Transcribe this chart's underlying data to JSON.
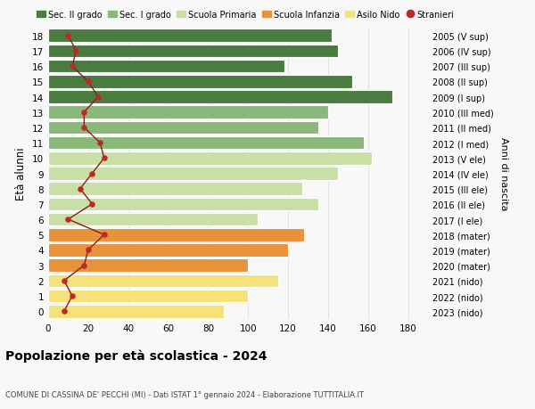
{
  "ages": [
    0,
    1,
    2,
    3,
    4,
    5,
    6,
    7,
    8,
    9,
    10,
    11,
    12,
    13,
    14,
    15,
    16,
    17,
    18
  ],
  "bar_values": [
    88,
    100,
    115,
    100,
    120,
    128,
    105,
    135,
    127,
    145,
    162,
    158,
    135,
    140,
    172,
    152,
    118,
    145,
    142
  ],
  "bar_colors": [
    "#f5e27a",
    "#f5e27a",
    "#f5e27a",
    "#e8923a",
    "#e8923a",
    "#e8923a",
    "#c8dfa8",
    "#c8dfa8",
    "#c8dfa8",
    "#c8dfa8",
    "#c8dfa8",
    "#8ab87a",
    "#8ab87a",
    "#8ab87a",
    "#4a7c3f",
    "#4a7c3f",
    "#4a7c3f",
    "#4a7c3f",
    "#4a7c3f"
  ],
  "stranieri_values": [
    8,
    12,
    8,
    18,
    20,
    28,
    10,
    22,
    16,
    22,
    28,
    26,
    18,
    18,
    25,
    20,
    12,
    14,
    10
  ],
  "right_labels": [
    "2023 (nido)",
    "2022 (nido)",
    "2021 (nido)",
    "2020 (mater)",
    "2019 (mater)",
    "2018 (mater)",
    "2017 (I ele)",
    "2016 (II ele)",
    "2015 (III ele)",
    "2014 (IV ele)",
    "2013 (V ele)",
    "2012 (I med)",
    "2011 (II med)",
    "2010 (III med)",
    "2009 (I sup)",
    "2008 (II sup)",
    "2007 (III sup)",
    "2006 (IV sup)",
    "2005 (V sup)"
  ],
  "legend_labels": [
    "Sec. II grado",
    "Sec. I grado",
    "Scuola Primaria",
    "Scuola Infanzia",
    "Asilo Nido",
    "Stranieri"
  ],
  "legend_colors": [
    "#4a7c3f",
    "#8ab87a",
    "#c8dfa8",
    "#e8923a",
    "#f5e27a",
    "#c0272d"
  ],
  "title": "Popolazione per età scolastica - 2024",
  "subtitle": "COMUNE DI CASSINA DE' PECCHI (MI) - Dati ISTAT 1° gennaio 2024 - Elaborazione TUTTITALIA.IT",
  "ylabel": "Età alunni",
  "right_ylabel": "Anni di nascita",
  "xlim": [
    0,
    190
  ],
  "xticks": [
    0,
    20,
    40,
    60,
    80,
    100,
    120,
    140,
    160,
    180
  ],
  "bg_color": "#f8f8f8",
  "grid_color": "#dddddd",
  "stranieri_color": "#c0272d",
  "stranieri_line_color": "#8b1a1a"
}
